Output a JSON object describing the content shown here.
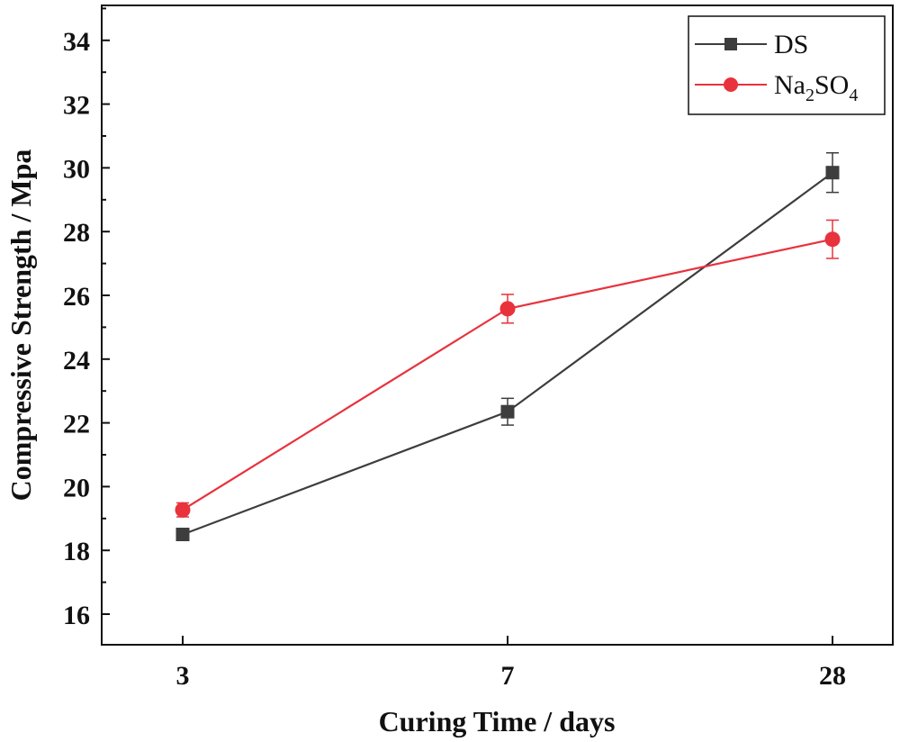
{
  "chart_data": {
    "type": "line",
    "title": "",
    "xlabel": "Curing Time / days",
    "ylabel": "Compressive Strength / Mpa",
    "categories": [
      "3",
      "7",
      "28"
    ],
    "ylim": [
      15,
      35
    ],
    "yticks": [
      16,
      18,
      20,
      22,
      24,
      26,
      28,
      30,
      32,
      34
    ],
    "ytick_labels": [
      "16",
      "18",
      "20",
      "22",
      "24",
      "26",
      "28",
      "30",
      "32",
      "34"
    ],
    "legend_position": "top-right",
    "series": [
      {
        "name": "DS",
        "legend_main": "DS",
        "legend_sub": "",
        "legend_tail": "",
        "marker": "square",
        "color": "#3d3d3d",
        "values": [
          18.5,
          22.35,
          29.85
        ],
        "errors": [
          0.1,
          0.42,
          0.62
        ]
      },
      {
        "name": "Na2SO4",
        "legend_main": "Na",
        "legend_sub": "2",
        "legend_tail": "SO",
        "legend_sub2": "4",
        "marker": "circle",
        "color": "#e8323c",
        "values": [
          19.27,
          25.58,
          27.76
        ],
        "errors": [
          0.22,
          0.45,
          0.6
        ]
      }
    ]
  }
}
